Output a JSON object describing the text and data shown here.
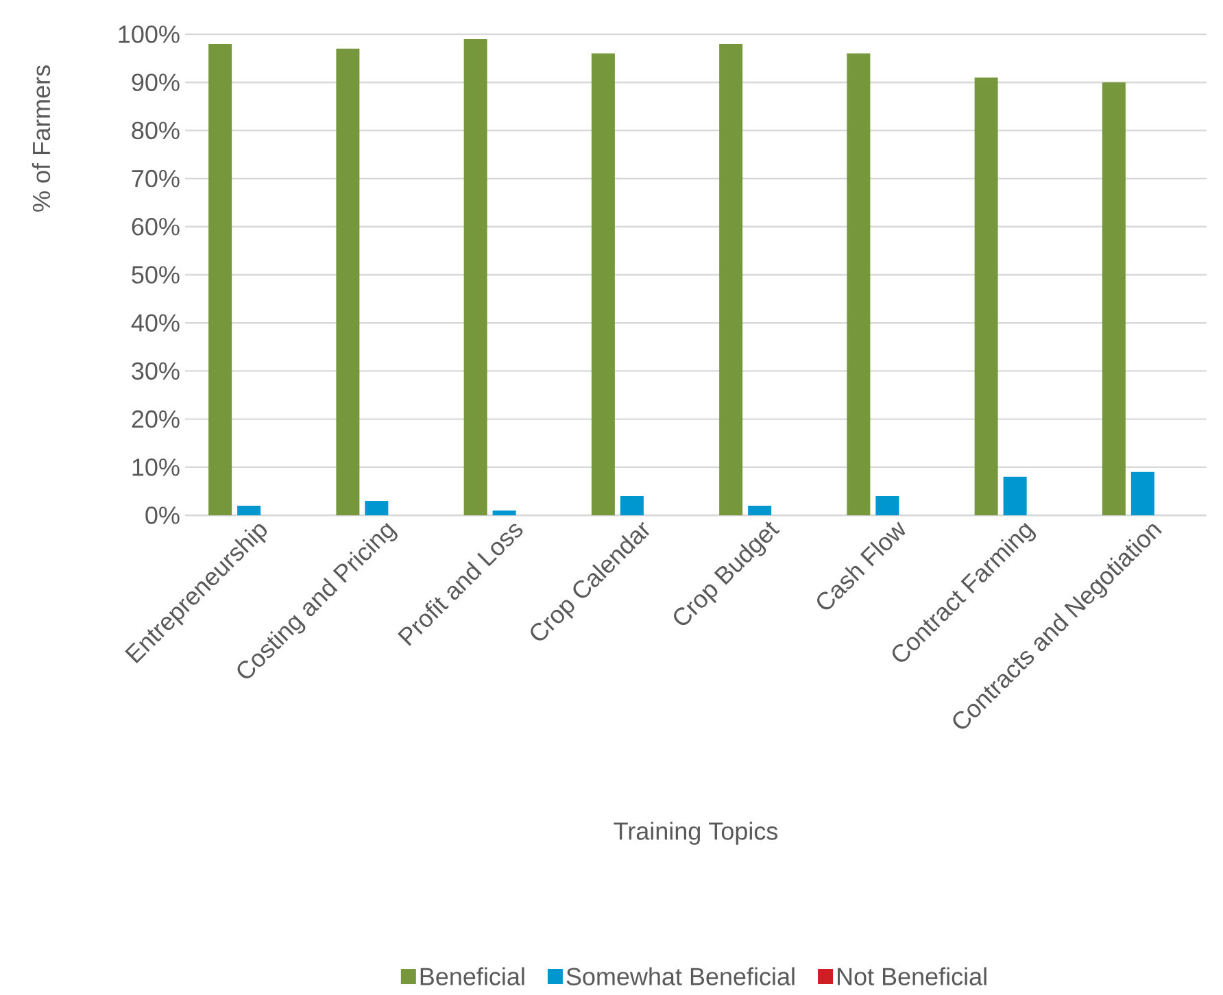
{
  "chart_data": {
    "type": "bar",
    "xlabel": "Training Topics",
    "ylabel": "% of Farmers",
    "categories": [
      "Entrepreneurship",
      "Costing and Pricing",
      "Profit and Loss",
      "Crop Calendar",
      "Crop Budget",
      "Cash Flow",
      "Contract Farming",
      "Contracts and Negotiation"
    ],
    "series": [
      {
        "name": "Beneficial",
        "color": "#77973d",
        "values": [
          98,
          97,
          99,
          96,
          98,
          96,
          91,
          90
        ]
      },
      {
        "name": "Somewhat Beneficial",
        "color": "#0096d0",
        "values": [
          2,
          3,
          1,
          4,
          2,
          4,
          8,
          9
        ]
      },
      {
        "name": "Not Beneficial",
        "color": "#d01c23",
        "values": [
          0,
          0,
          0,
          0,
          0,
          0,
          0,
          0
        ]
      }
    ],
    "ylim": [
      0,
      100
    ],
    "yticks": [
      {
        "value": 0,
        "label": "0%"
      },
      {
        "value": 10,
        "label": "10%"
      },
      {
        "value": 20,
        "label": "20%"
      },
      {
        "value": 30,
        "label": "30%"
      },
      {
        "value": 40,
        "label": "40%"
      },
      {
        "value": 50,
        "label": "50%"
      },
      {
        "value": 60,
        "label": "60%"
      },
      {
        "value": 70,
        "label": "70%"
      },
      {
        "value": 80,
        "label": "80%"
      },
      {
        "value": 90,
        "label": "90%"
      },
      {
        "value": 100,
        "label": "100%"
      }
    ],
    "grid": "y",
    "legend": "bottom"
  }
}
